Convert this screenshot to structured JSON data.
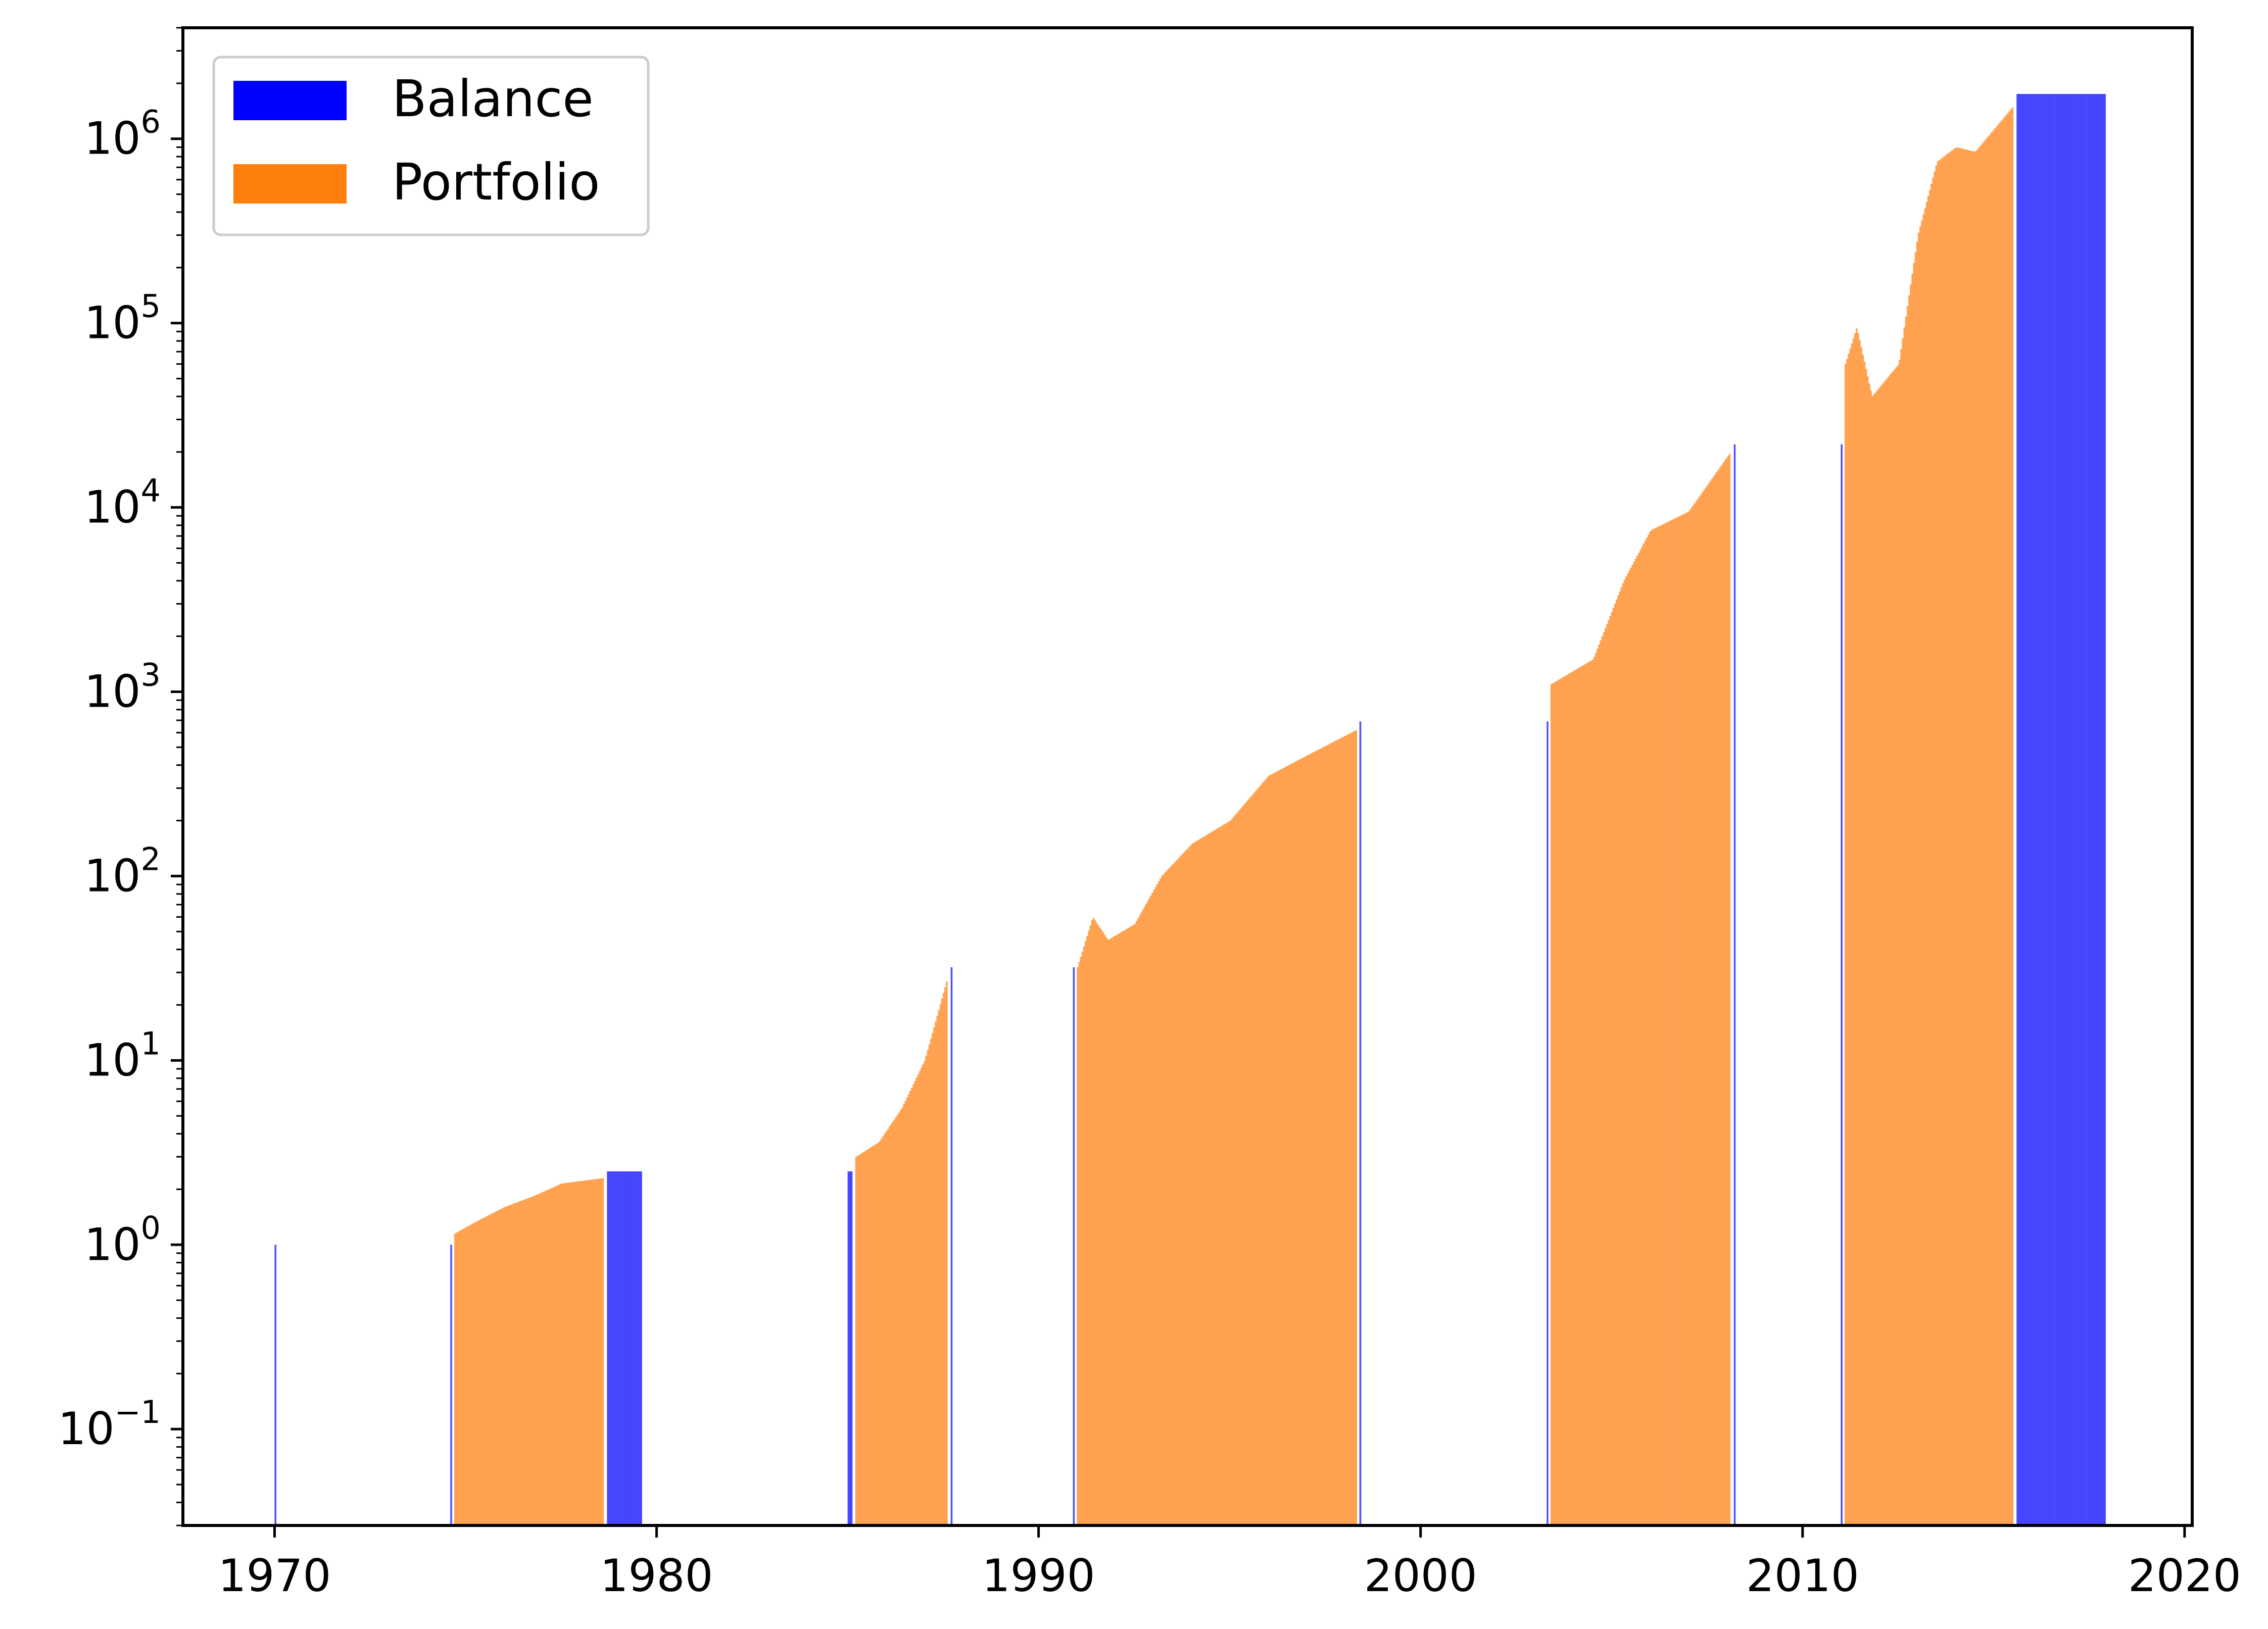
{
  "chart_data": {
    "type": "bar",
    "title": "",
    "xlabel": "",
    "ylabel": "",
    "yscale": "log",
    "xlim": [
      1967.6,
      2020.2
    ],
    "ylim": [
      0.03,
      4000000
    ],
    "grid": false,
    "legend_position": "top-left",
    "x_ticks": [
      1970,
      1980,
      1990,
      2000,
      2010,
      2020
    ],
    "y_ticks": [
      {
        "base": "10",
        "exp": "−1",
        "value": 0.1
      },
      {
        "base": "10",
        "exp": "0",
        "value": 1
      },
      {
        "base": "10",
        "exp": "1",
        "value": 10
      },
      {
        "base": "10",
        "exp": "2",
        "value": 100
      },
      {
        "base": "10",
        "exp": "3",
        "value": 1000
      },
      {
        "base": "10",
        "exp": "4",
        "value": 10000
      },
      {
        "base": "10",
        "exp": "5",
        "value": 100000
      },
      {
        "base": "10",
        "exp": "6",
        "value": 1000000
      }
    ],
    "series": [
      {
        "name": "Balance",
        "color": "#0000ff",
        "points": [
          {
            "x": 1970.0,
            "y": 1.0
          },
          {
            "x": 1974.6,
            "y": 1.0
          },
          {
            "x": 1978.7,
            "y": 2.5
          },
          {
            "x": 1979.6,
            "y": 2.5
          },
          {
            "x": 1985.0,
            "y": 2.5
          },
          {
            "x": 1985.1,
            "y": 2.5
          },
          {
            "x": 1987.7,
            "y": 32
          },
          {
            "x": 1990.9,
            "y": 32
          },
          {
            "x": 1998.4,
            "y": 690
          },
          {
            "x": 2003.3,
            "y": 690
          },
          {
            "x": 2008.2,
            "y": 22000
          },
          {
            "x": 2011.0,
            "y": 22000
          },
          {
            "x": 2015.6,
            "y": 1750000
          },
          {
            "x": 2017.9,
            "y": 1750000
          }
        ]
      },
      {
        "name": "Portfolio",
        "color": "#ff7f0e",
        "points": [
          {
            "x": 1974.7,
            "y": 1.15
          },
          {
            "x": 1975.3,
            "y": 1.35
          },
          {
            "x": 1976.0,
            "y": 1.6
          },
          {
            "x": 1976.8,
            "y": 1.85
          },
          {
            "x": 1977.5,
            "y": 2.15
          },
          {
            "x": 1978.6,
            "y": 2.3
          },
          {
            "x": 1985.2,
            "y": 3.0
          },
          {
            "x": 1985.8,
            "y": 3.6
          },
          {
            "x": 1986.4,
            "y": 5.5
          },
          {
            "x": 1987.0,
            "y": 10
          },
          {
            "x": 1987.6,
            "y": 28
          },
          {
            "x": 1991.0,
            "y": 32
          },
          {
            "x": 1991.4,
            "y": 60
          },
          {
            "x": 1991.8,
            "y": 45
          },
          {
            "x": 1992.5,
            "y": 55
          },
          {
            "x": 1993.2,
            "y": 100
          },
          {
            "x": 1994.0,
            "y": 150
          },
          {
            "x": 1995.0,
            "y": 200
          },
          {
            "x": 1996.0,
            "y": 350
          },
          {
            "x": 1997.0,
            "y": 450
          },
          {
            "x": 1998.3,
            "y": 620
          },
          {
            "x": 2003.4,
            "y": 1100
          },
          {
            "x": 2004.5,
            "y": 1500
          },
          {
            "x": 2005.3,
            "y": 4000
          },
          {
            "x": 2006.0,
            "y": 7500
          },
          {
            "x": 2007.0,
            "y": 9500
          },
          {
            "x": 2008.1,
            "y": 20000
          },
          {
            "x": 2011.1,
            "y": 60000
          },
          {
            "x": 2011.4,
            "y": 95000
          },
          {
            "x": 2011.8,
            "y": 40000
          },
          {
            "x": 2012.5,
            "y": 60000
          },
          {
            "x": 2013.0,
            "y": 300000
          },
          {
            "x": 2013.5,
            "y": 750000
          },
          {
            "x": 2014.0,
            "y": 900000
          },
          {
            "x": 2014.5,
            "y": 850000
          },
          {
            "x": 2015.5,
            "y": 1500000
          }
        ]
      }
    ]
  }
}
